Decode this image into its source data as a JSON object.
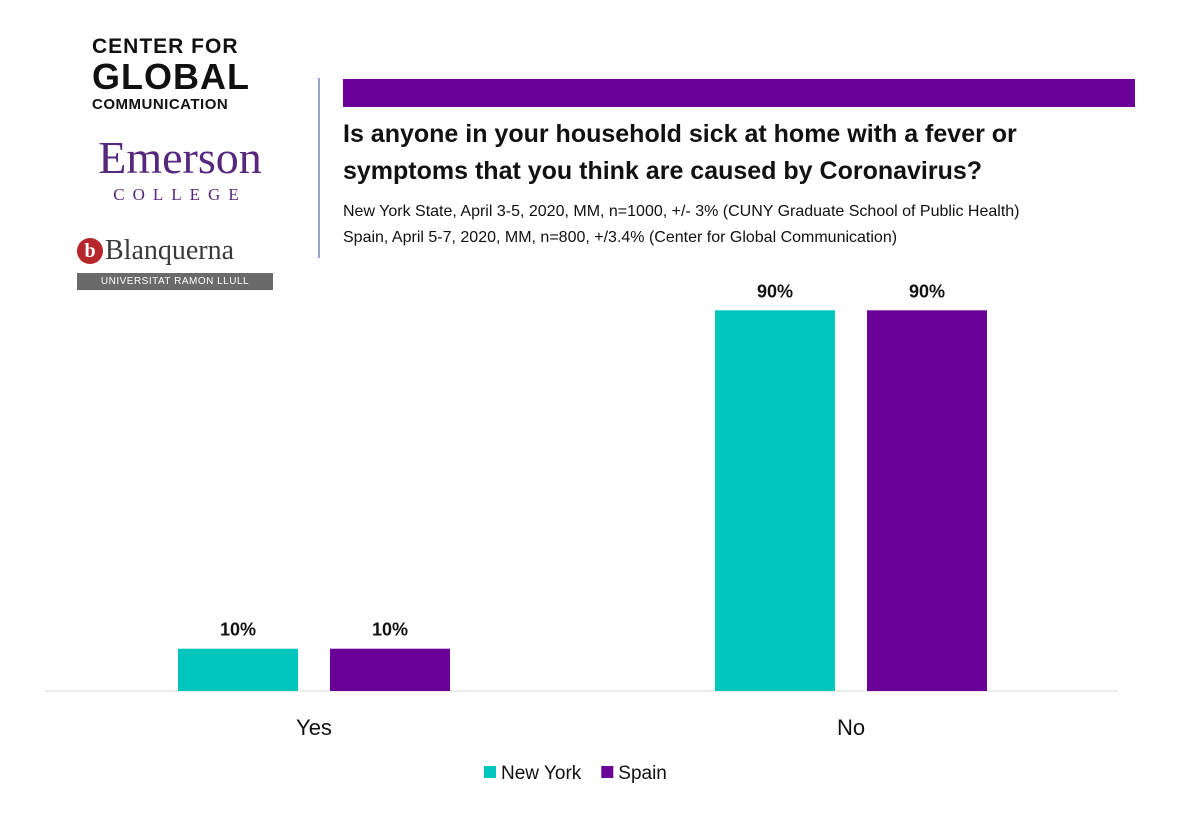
{
  "logos": {
    "cgc_line1": "CENTER FOR",
    "cgc_line2": "GLOBAL",
    "cgc_line3": "COMMUNICATION",
    "emerson_name": "Emerson",
    "emerson_sub": "COLLEGE",
    "blanquerna_mark": "b",
    "blanquerna_name": "Blanquerna",
    "blanquerna_sub": "UNIVERSITAT RAMON LLULL"
  },
  "colors": {
    "new_york": "#00c5bc",
    "spain": "#6b0099",
    "header_bar": "#6b0099"
  },
  "chart_data": {
    "type": "bar",
    "title": "Is anyone in your household sick at home with a fever or symptoms that you think are caused by Coronavirus?",
    "notes": [
      "New York State, April 3-5, 2020, MM, n=1000, +/- 3% (CUNY Graduate School of Public Health)",
      "Spain, April 5-7, 2020, MM, n=800, +/3.4% (Center for Global Communication)"
    ],
    "categories": [
      "Yes",
      "No"
    ],
    "series": [
      {
        "name": "New York",
        "values": [
          10,
          90
        ],
        "labels": [
          "10%",
          "90%"
        ],
        "color": "#00c5bc"
      },
      {
        "name": "Spain",
        "values": [
          10,
          90
        ],
        "labels": [
          "10%",
          "90%"
        ],
        "color": "#6b0099"
      }
    ],
    "ylim": [
      0,
      100
    ],
    "grid": false,
    "legend": "bottom-center"
  }
}
